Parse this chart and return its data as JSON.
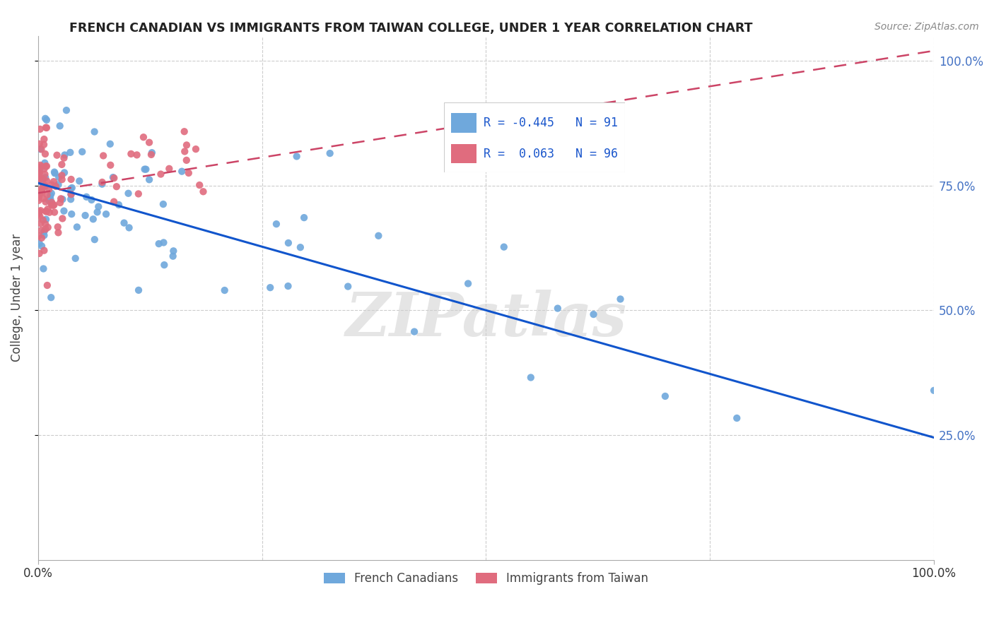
{
  "title": "FRENCH CANADIAN VS IMMIGRANTS FROM TAIWAN COLLEGE, UNDER 1 YEAR CORRELATION CHART",
  "source": "Source: ZipAtlas.com",
  "ylabel": "College, Under 1 year",
  "legend_entry1": "R = -0.445   N = 91",
  "legend_entry2": "R =  0.063   N = 96",
  "legend_label1": "French Canadians",
  "legend_label2": "Immigrants from Taiwan",
  "blue_color": "#6fa8dc",
  "pink_color": "#e06c7e",
  "blue_line_color": "#1155cc",
  "pink_line_color": "#cc4466",
  "watermark": "ZIPatlas",
  "blue_line_y_start": 0.755,
  "blue_line_y_end": 0.245,
  "pink_line_y_start": 0.735,
  "pink_line_y_end": 1.02,
  "xlim": [
    0.0,
    1.0
  ],
  "ylim": [
    0.0,
    1.05
  ],
  "ytick_values": [
    0.25,
    0.5,
    0.75,
    1.0
  ],
  "ytick_labels": [
    "25.0%",
    "50.0%",
    "75.0%",
    "100.0%"
  ],
  "xtick_values": [
    0.0,
    1.0
  ],
  "xtick_labels": [
    "0.0%",
    "100.0%"
  ]
}
